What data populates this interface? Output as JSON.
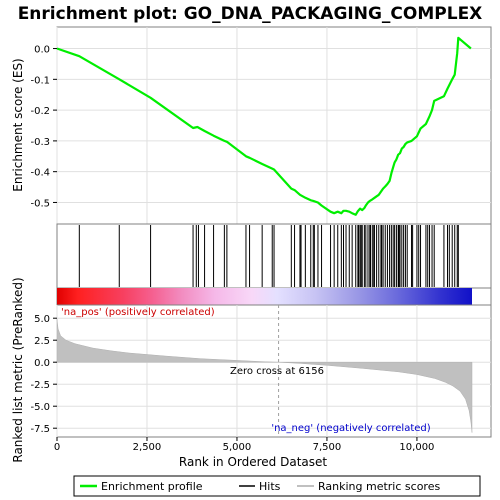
{
  "chart_data": [
    {
      "type": "line",
      "title": "Enrichment plot: GO_DNA_PACKAGING_COMPLEX",
      "ylabel": "Enrichment score (ES)",
      "ylim": [
        -0.57,
        0.07
      ],
      "yticks": [
        "0.0",
        "-0.1",
        "-0.2",
        "-0.3",
        "-0.4",
        "-0.5"
      ],
      "ytick_values": [
        0.0,
        -0.1,
        -0.2,
        -0.3,
        -0.4,
        -0.5
      ],
      "xlim": [
        0,
        12000
      ],
      "grid": true,
      "series": [
        {
          "name": "Enrichment profile",
          "color": "#00ee00",
          "x": [
            0,
            620,
            1730,
            2600,
            3780,
            3900,
            4100,
            4350,
            4650,
            4720,
            5250,
            5350,
            5700,
            5980,
            6030,
            6510,
            6600,
            6750,
            6900,
            7050,
            7120,
            7250,
            7350,
            7600,
            7700,
            7800,
            7900,
            7960,
            8030,
            8120,
            8200,
            8300,
            8360,
            8420,
            8480,
            8540,
            8580,
            8640,
            8690,
            8760,
            8820,
            8880,
            8940,
            9000,
            9060,
            9120,
            9180,
            9240,
            9290,
            9340,
            9380,
            9430,
            9480,
            9530,
            9580,
            9630,
            9680,
            9730,
            9850,
            10000,
            10100,
            10250,
            10350,
            10420,
            10480,
            10750,
            10850,
            10980,
            11050,
            11120,
            11150,
            11500
          ],
          "y": [
            0.0,
            -0.025,
            -0.1,
            -0.16,
            -0.258,
            -0.255,
            -0.268,
            -0.283,
            -0.3,
            -0.303,
            -0.35,
            -0.355,
            -0.375,
            -0.39,
            -0.393,
            -0.455,
            -0.46,
            -0.475,
            -0.485,
            -0.493,
            -0.495,
            -0.5,
            -0.51,
            -0.53,
            -0.535,
            -0.53,
            -0.535,
            -0.527,
            -0.527,
            -0.53,
            -0.535,
            -0.54,
            -0.528,
            -0.52,
            -0.525,
            -0.518,
            -0.51,
            -0.5,
            -0.495,
            -0.49,
            -0.485,
            -0.48,
            -0.475,
            -0.465,
            -0.455,
            -0.448,
            -0.44,
            -0.43,
            -0.405,
            -0.385,
            -0.37,
            -0.36,
            -0.345,
            -0.34,
            -0.325,
            -0.32,
            -0.31,
            -0.305,
            -0.3,
            -0.285,
            -0.26,
            -0.245,
            -0.22,
            -0.2,
            -0.17,
            -0.155,
            -0.13,
            -0.1,
            -0.085,
            -0.015,
            0.035,
            0.0
          ]
        },
        {
          "name": "Hits",
          "color": "#000000",
          "x": [
            620,
            1730,
            2600,
            3780,
            3870,
            3930,
            4100,
            4350,
            4650,
            4720,
            5250,
            5350,
            5700,
            5980,
            6030,
            6510,
            6600,
            6750,
            6780,
            6900,
            7050,
            7120,
            7150,
            7250,
            7350,
            7600,
            7700,
            7800,
            7900,
            7960,
            8030,
            8120,
            8200,
            8300,
            8360,
            8380,
            8420,
            8450,
            8480,
            8540,
            8580,
            8640,
            8690,
            8710,
            8760,
            8800,
            8820,
            8880,
            8940,
            9000,
            9020,
            9060,
            9120,
            9180,
            9240,
            9290,
            9340,
            9380,
            9430,
            9480,
            9500,
            9530,
            9580,
            9630,
            9680,
            9730,
            9850,
            9880,
            10000,
            10050,
            10100,
            10250,
            10300,
            10350,
            10420,
            10480,
            10750,
            10850,
            10900,
            10980,
            11050,
            11120,
            11150
          ]
        }
      ]
    },
    {
      "type": "area",
      "ylabel": "Ranked list metric (PreRanked)",
      "xlabel": "Rank in Ordered Dataset",
      "xlim": [
        0,
        12000
      ],
      "ylim": [
        -8.5,
        6.5
      ],
      "xticks": [
        "0",
        "2,500",
        "5,000",
        "7,500",
        "10,000"
      ],
      "xtick_values": [
        0,
        2500,
        5000,
        7500,
        10000
      ],
      "yticks": [
        "5.0",
        "2.5",
        "0.0",
        "-2.5",
        "-5.0",
        "-7.5"
      ],
      "ytick_values": [
        5.0,
        2.5,
        0.0,
        -2.5,
        -5.0,
        -7.5
      ],
      "grid": true,
      "series": [
        {
          "name": "Ranking metric scores",
          "color": "#c0c0c0",
          "x": [
            0,
            30,
            100,
            250,
            500,
            1000,
            1500,
            2000,
            3000,
            4000,
            5000,
            5800,
            6156,
            6800,
            7500,
            8500,
            9500,
            10000,
            10500,
            10800,
            11000,
            11200,
            11350,
            11450,
            11500,
            11530
          ],
          "y": [
            4.9,
            3.8,
            3.0,
            2.5,
            2.1,
            1.6,
            1.3,
            1.05,
            0.7,
            0.4,
            0.2,
            0.05,
            0.0,
            -0.15,
            -0.35,
            -0.7,
            -1.1,
            -1.4,
            -1.85,
            -2.3,
            -2.7,
            -3.3,
            -4.2,
            -5.5,
            -6.8,
            -8.0
          ]
        }
      ],
      "annotations": [
        {
          "text": "'na_pos' (positively correlated)",
          "color": "#cc0000"
        },
        {
          "text": "Zero cross at 6156",
          "x": 6156,
          "color": "#000000"
        },
        {
          "text": "'na_neg' (negatively correlated)",
          "color": "#0000cc"
        }
      ]
    }
  ],
  "legend": {
    "items": [
      {
        "name": "Enrichment profile",
        "color": "#00ee00"
      },
      {
        "name": "Hits",
        "color": "#000000"
      },
      {
        "name": "Ranking metric scores",
        "color": "#c0c0c0"
      }
    ]
  },
  "colors": {
    "bar_red": "#ee0000",
    "bar_blue": "#0000ee",
    "grid": "#e0e0e0",
    "frame": "#808080"
  },
  "zero_cross": 6156,
  "n_total": 11530
}
